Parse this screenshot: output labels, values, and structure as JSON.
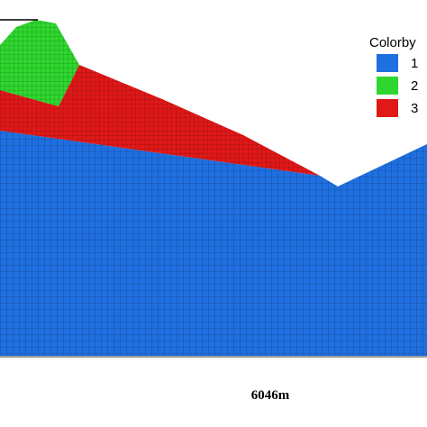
{
  "legend": {
    "title": "Colorby",
    "items": [
      {
        "label": "1",
        "color": "#1f6fe0"
      },
      {
        "label": "2",
        "color": "#2fd62f"
      },
      {
        "label": "3",
        "color": "#e01818"
      }
    ]
  },
  "caption": "6046m"
}
